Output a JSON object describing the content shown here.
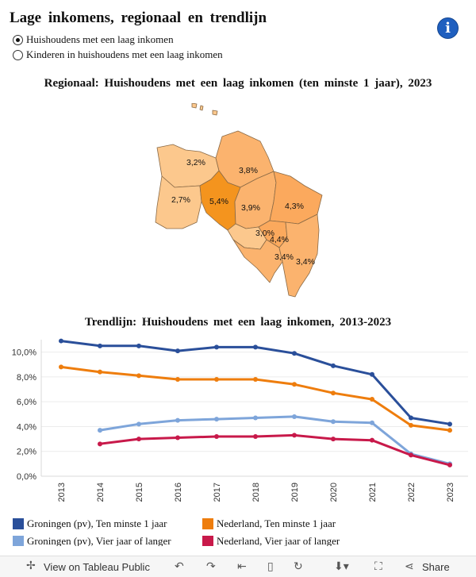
{
  "title": "Lage inkomens, regionaal en trendlijn",
  "info_icon": "i",
  "radio_options": [
    {
      "label": "Huishoudens met een laag inkomen",
      "selected": true
    },
    {
      "label": "Kinderen in huishoudens met een laag inkomen",
      "selected": false
    }
  ],
  "map": {
    "title": "Regionaal: Huishoudens met een laag inkomen (ten minste 1 jaar), 2023",
    "labels": [
      "3,2%",
      "3,8%",
      "2,7%",
      "5,4%",
      "3,9%",
      "4,3%",
      "3,0%",
      "4,4%",
      "3,4%",
      "3,4%"
    ]
  },
  "chart_data": {
    "type": "line",
    "title": "Trendlijn: Huishoudens met een laag inkomen, 2013-2023",
    "x": [
      "2013",
      "2014",
      "2015",
      "2016",
      "2017",
      "2018",
      "2019",
      "2020",
      "2021",
      "2022",
      "2023"
    ],
    "ylim": [
      0,
      11
    ],
    "yticks": [
      "0,0%",
      "2,0%",
      "4,0%",
      "6,0%",
      "8,0%",
      "10,0%"
    ],
    "series": [
      {
        "name": "Groningen (pv), Ten minste 1 jaar",
        "color": "#2a4f9a",
        "values": [
          10.9,
          10.5,
          10.5,
          10.1,
          10.4,
          10.4,
          9.9,
          8.9,
          8.2,
          4.7,
          4.2
        ]
      },
      {
        "name": "Nederland, Ten minste 1 jaar",
        "color": "#ee7d0d",
        "values": [
          8.8,
          8.4,
          8.1,
          7.8,
          7.8,
          7.8,
          7.4,
          6.7,
          6.2,
          4.1,
          3.7
        ]
      },
      {
        "name": "Groningen (pv), Vier jaar of langer",
        "color": "#7ea5da",
        "values": [
          null,
          3.7,
          4.2,
          4.5,
          4.6,
          4.7,
          4.8,
          4.4,
          4.3,
          1.8,
          1.0
        ]
      },
      {
        "name": "Nederland, Vier jaar of langer",
        "color": "#c8194a",
        "values": [
          null,
          2.6,
          3.0,
          3.1,
          3.2,
          3.2,
          3.3,
          3.0,
          2.9,
          1.7,
          0.9
        ]
      }
    ]
  },
  "toolbar": {
    "view_label": "View on Tableau Public",
    "share_label": "Share"
  }
}
